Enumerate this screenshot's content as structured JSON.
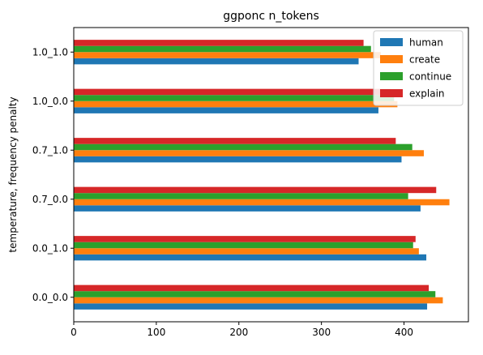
{
  "chart_data": {
    "type": "bar",
    "orientation": "horizontal",
    "title": "ggponc n_tokens",
    "xlabel": "",
    "ylabel": "temperature, frequency penalty",
    "categories": [
      "0.0_0.0",
      "0.0_1.0",
      "0.7_0.0",
      "0.7_1.0",
      "1.0_0.0",
      "1.0_1.0"
    ],
    "x_ticks": [
      0,
      100,
      200,
      300,
      400
    ],
    "xlim": [
      0,
      478
    ],
    "grid": false,
    "legend_position": "top-right",
    "series": [
      {
        "name": "human",
        "color": "#1f77b4",
        "values": [
          428,
          427,
          420,
          397,
          369,
          345
        ]
      },
      {
        "name": "create",
        "color": "#ff7f0e",
        "values": [
          447,
          418,
          455,
          424,
          392,
          372
        ]
      },
      {
        "name": "continue",
        "color": "#2ca02c",
        "values": [
          438,
          411,
          405,
          410,
          388,
          360
        ]
      },
      {
        "name": "explain",
        "color": "#d62728",
        "values": [
          430,
          414,
          439,
          390,
          384,
          351
        ]
      }
    ]
  }
}
